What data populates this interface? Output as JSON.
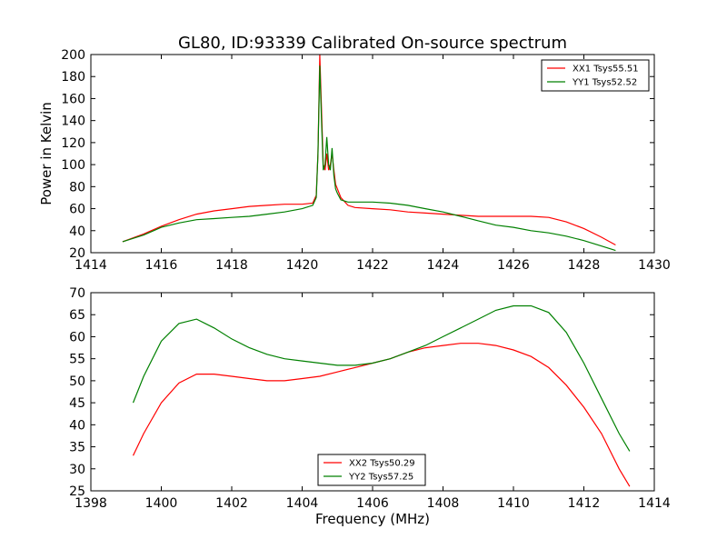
{
  "figure": {
    "title": "GL80, ID:93339 Calibrated On-source spectrum"
  },
  "chart_data": [
    {
      "type": "line",
      "title": "GL80, ID:93339 Calibrated On-source spectrum",
      "xlabel": "",
      "ylabel": "Power in Kelvin",
      "xlim": [
        1414,
        1430
      ],
      "ylim": [
        20,
        200
      ],
      "xticks": [
        1414,
        1416,
        1418,
        1420,
        1422,
        1424,
        1426,
        1428,
        1430
      ],
      "yticks": [
        20,
        40,
        60,
        80,
        100,
        120,
        140,
        160,
        180,
        200
      ],
      "legend_position": "top-right",
      "grid": false,
      "series": [
        {
          "name": "XX1 Tsys55.51",
          "color": "#ff0000",
          "x": [
            1414.9,
            1415.5,
            1416.0,
            1416.5,
            1417.0,
            1417.5,
            1418.0,
            1418.5,
            1419.0,
            1419.5,
            1420.0,
            1420.3,
            1420.4,
            1420.45,
            1420.5,
            1420.55,
            1420.6,
            1420.65,
            1420.7,
            1420.75,
            1420.8,
            1420.85,
            1420.9,
            1420.95,
            1421.0,
            1421.1,
            1421.3,
            1421.5,
            1422.0,
            1422.5,
            1423.0,
            1423.5,
            1424.0,
            1424.5,
            1425.0,
            1425.5,
            1426.0,
            1426.5,
            1427.0,
            1427.5,
            1428.0,
            1428.5,
            1428.9
          ],
          "y": [
            30,
            37,
            44,
            50,
            55,
            58,
            60,
            62,
            63,
            64,
            64,
            65,
            72,
            110,
            200,
            150,
            100,
            95,
            110,
            95,
            100,
            110,
            95,
            82,
            78,
            70,
            63,
            61,
            60,
            59,
            57,
            56,
            55,
            54,
            53,
            53,
            53,
            53,
            52,
            48,
            42,
            34,
            27
          ]
        },
        {
          "name": "YY1 Tsys52.52",
          "color": "#008000",
          "x": [
            1414.9,
            1415.5,
            1416.0,
            1416.5,
            1417.0,
            1417.5,
            1418.0,
            1418.5,
            1419.0,
            1419.5,
            1420.0,
            1420.3,
            1420.4,
            1420.45,
            1420.5,
            1420.55,
            1420.6,
            1420.65,
            1420.7,
            1420.75,
            1420.8,
            1420.85,
            1420.9,
            1420.95,
            1421.0,
            1421.1,
            1421.3,
            1421.5,
            1422.0,
            1422.5,
            1423.0,
            1423.5,
            1424.0,
            1424.5,
            1425.0,
            1425.5,
            1426.0,
            1426.5,
            1427.0,
            1427.5,
            1428.0,
            1428.5,
            1428.9
          ],
          "y": [
            30,
            36,
            43,
            47,
            50,
            51,
            52,
            53,
            55,
            57,
            60,
            63,
            70,
            110,
            190,
            140,
            95,
            100,
            125,
            100,
            95,
            115,
            90,
            78,
            74,
            68,
            66,
            66,
            66,
            65,
            63,
            60,
            57,
            53,
            49,
            45,
            43,
            40,
            38,
            35,
            31,
            26,
            22
          ]
        }
      ]
    },
    {
      "type": "line",
      "title": "",
      "xlabel": "Frequency (MHz)",
      "ylabel": "",
      "xlim": [
        1398,
        1414
      ],
      "ylim": [
        25,
        70
      ],
      "xticks": [
        1398,
        1400,
        1402,
        1404,
        1406,
        1408,
        1410,
        1412,
        1414
      ],
      "yticks": [
        25,
        30,
        35,
        40,
        45,
        50,
        55,
        60,
        65,
        70
      ],
      "legend_position": "bottom-center",
      "grid": false,
      "series": [
        {
          "name": "XX2 Tsys50.29",
          "color": "#ff0000",
          "x": [
            1399.2,
            1399.5,
            1400.0,
            1400.5,
            1401.0,
            1401.5,
            1402.0,
            1402.5,
            1403.0,
            1403.5,
            1404.0,
            1404.5,
            1405.0,
            1405.5,
            1406.0,
            1406.5,
            1407.0,
            1407.5,
            1408.0,
            1408.5,
            1409.0,
            1409.5,
            1410.0,
            1410.5,
            1411.0,
            1411.5,
            1412.0,
            1412.5,
            1413.0,
            1413.3
          ],
          "y": [
            33,
            38,
            45,
            49.5,
            51.5,
            51.5,
            51,
            50.5,
            50,
            50,
            50.5,
            51,
            52,
            53,
            54,
            55,
            56.5,
            57.5,
            58,
            58.5,
            58.5,
            58,
            57,
            55.5,
            53,
            49,
            44,
            38,
            30,
            26
          ]
        },
        {
          "name": "YY2 Tsys57.25",
          "color": "#008000",
          "x": [
            1399.2,
            1399.5,
            1400.0,
            1400.5,
            1401.0,
            1401.5,
            1402.0,
            1402.5,
            1403.0,
            1403.5,
            1404.0,
            1404.5,
            1405.0,
            1405.5,
            1406.0,
            1406.5,
            1407.0,
            1407.5,
            1408.0,
            1408.5,
            1409.0,
            1409.5,
            1410.0,
            1410.5,
            1411.0,
            1411.5,
            1412.0,
            1412.5,
            1413.0,
            1413.3
          ],
          "y": [
            45,
            51,
            59,
            63,
            64,
            62,
            59.5,
            57.5,
            56,
            55,
            54.5,
            54,
            53.5,
            53.5,
            54,
            55,
            56.5,
            58,
            60,
            62,
            64,
            66,
            67,
            67,
            65.5,
            61,
            54,
            46,
            38,
            34
          ]
        }
      ]
    }
  ]
}
